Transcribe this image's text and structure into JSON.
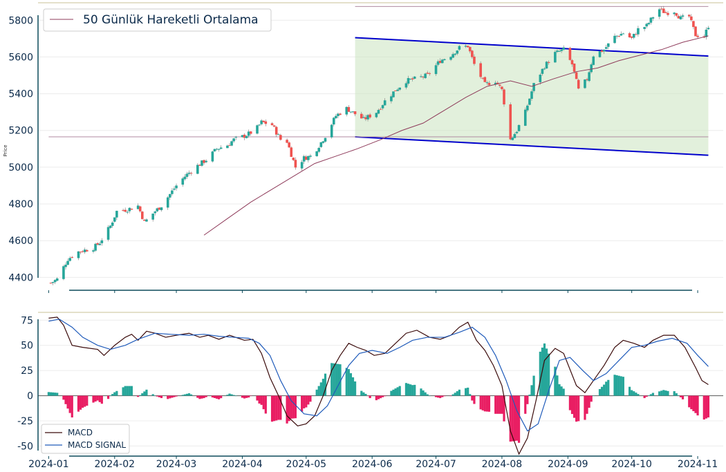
{
  "chart_data": [
    {
      "type": "candlestick",
      "ylabel": "Price",
      "ylim": [
        4330,
        5880
      ],
      "yticks": [
        4400,
        4600,
        4800,
        5000,
        5200,
        5400,
        5600,
        5800
      ],
      "legend": {
        "label": "50 Günlük Hareketli Ortalama",
        "placement": "top-left"
      },
      "colors": {
        "up": "#26a69a",
        "down": "#ef5350",
        "sma": "#8e3a5a",
        "channel": "#0000cc",
        "channel_fill": "#cfe6c4",
        "level": "#b08aa0"
      },
      "price_path": [
        [
          "2024-01-02",
          4370
        ],
        [
          "2024-01-05",
          4390
        ],
        [
          "2024-01-10",
          4500
        ],
        [
          "2024-01-15",
          4540
        ],
        [
          "2024-01-22",
          4560
        ],
        [
          "2024-01-25",
          4590
        ],
        [
          "2024-01-30",
          4680
        ],
        [
          "2024-02-02",
          4760
        ],
        [
          "2024-02-07",
          4770
        ],
        [
          "2024-02-12",
          4790
        ],
        [
          "2024-02-15",
          4700
        ],
        [
          "2024-02-20",
          4760
        ],
        [
          "2024-02-23",
          4790
        ],
        [
          "2024-03-01",
          4900
        ],
        [
          "2024-03-05",
          4950
        ],
        [
          "2024-03-10",
          5000
        ],
        [
          "2024-03-15",
          5040
        ],
        [
          "2024-03-20",
          5100
        ],
        [
          "2024-03-25",
          5120
        ],
        [
          "2024-03-28",
          5150
        ],
        [
          "2024-04-02",
          5170
        ],
        [
          "2024-04-07",
          5200
        ],
        [
          "2024-04-10",
          5245
        ],
        [
          "2024-04-15",
          5230
        ],
        [
          "2024-04-19",
          5150
        ],
        [
          "2024-04-22",
          5140
        ],
        [
          "2024-04-26",
          5000
        ],
        [
          "2024-04-30",
          5050
        ],
        [
          "2024-05-03",
          5060
        ],
        [
          "2024-05-06",
          5100
        ],
        [
          "2024-05-10",
          5170
        ],
        [
          "2024-05-15",
          5280
        ],
        [
          "2024-05-20",
          5320
        ],
        [
          "2024-05-24",
          5290
        ],
        [
          "2024-05-28",
          5260
        ],
        [
          "2024-06-03",
          5300
        ],
        [
          "2024-06-07",
          5360
        ],
        [
          "2024-06-12",
          5420
        ],
        [
          "2024-06-17",
          5470
        ],
        [
          "2024-06-21",
          5480
        ],
        [
          "2024-06-27",
          5500
        ],
        [
          "2024-07-03",
          5580
        ],
        [
          "2024-07-08",
          5610
        ],
        [
          "2024-07-12",
          5650
        ],
        [
          "2024-07-16",
          5660
        ],
        [
          "2024-07-19",
          5560
        ],
        [
          "2024-07-24",
          5450
        ],
        [
          "2024-07-29",
          5470
        ],
        [
          "2024-08-01",
          5420
        ],
        [
          "2024-08-05",
          5150
        ],
        [
          "2024-08-08",
          5200
        ],
        [
          "2024-08-12",
          5300
        ],
        [
          "2024-08-16",
          5450
        ],
        [
          "2024-08-21",
          5550
        ],
        [
          "2024-08-26",
          5620
        ],
        [
          "2024-08-30",
          5640
        ],
        [
          "2024-09-03",
          5560
        ],
        [
          "2024-09-06",
          5420
        ],
        [
          "2024-09-10",
          5480
        ],
        [
          "2024-09-13",
          5610
        ],
        [
          "2024-09-18",
          5640
        ],
        [
          "2024-09-23",
          5710
        ],
        [
          "2024-09-27",
          5730
        ],
        [
          "2024-10-01",
          5700
        ],
        [
          "2024-10-04",
          5750
        ],
        [
          "2024-10-08",
          5770
        ],
        [
          "2024-10-11",
          5820
        ],
        [
          "2024-10-14",
          5860
        ],
        [
          "2024-10-17",
          5840
        ],
        [
          "2024-10-21",
          5850
        ],
        [
          "2024-10-24",
          5810
        ],
        [
          "2024-10-28",
          5820
        ],
        [
          "2024-10-31",
          5720
        ],
        [
          "2024-11-04",
          5710
        ],
        [
          "2024-11-06",
          5770
        ]
      ],
      "sma50": [
        [
          "2024-03-14",
          4630
        ],
        [
          "2024-03-25",
          4720
        ],
        [
          "2024-04-05",
          4810
        ],
        [
          "2024-04-15",
          4880
        ],
        [
          "2024-04-25",
          4950
        ],
        [
          "2024-05-05",
          5020
        ],
        [
          "2024-05-15",
          5060
        ],
        [
          "2024-05-25",
          5100
        ],
        [
          "2024-06-05",
          5150
        ],
        [
          "2024-06-15",
          5200
        ],
        [
          "2024-06-25",
          5240
        ],
        [
          "2024-07-05",
          5310
        ],
        [
          "2024-07-15",
          5380
        ],
        [
          "2024-07-25",
          5440
        ],
        [
          "2024-08-05",
          5470
        ],
        [
          "2024-08-15",
          5440
        ],
        [
          "2024-08-25",
          5480
        ],
        [
          "2024-09-05",
          5520
        ],
        [
          "2024-09-15",
          5540
        ],
        [
          "2024-09-25",
          5580
        ],
        [
          "2024-10-05",
          5610
        ],
        [
          "2024-10-15",
          5640
        ],
        [
          "2024-10-25",
          5680
        ],
        [
          "2024-11-06",
          5715
        ]
      ],
      "channel": {
        "x0": "2024-05-24",
        "x1": "2024-11-06",
        "upper": [
          5705,
          5605
        ],
        "lower": [
          5165,
          5065
        ]
      },
      "levels": [
        {
          "value": 5165,
          "from": "2024-01-01",
          "to": "2024-11-06"
        },
        {
          "value": 5875,
          "from": "2024-05-24",
          "to": "2024-11-06"
        }
      ]
    },
    {
      "type": "bar+line",
      "ylim": [
        -60,
        80
      ],
      "yticks": [
        -50,
        -25,
        0,
        25,
        50,
        75
      ],
      "legend_placement": "bottom-left",
      "colors": {
        "pos": "#26a69a",
        "neg": "#e91e63",
        "macd": "#3a0a0a",
        "signal": "#1e5aba"
      },
      "series": [
        {
          "name": "MACD",
          "points": [
            [
              "2024-01-01",
              77
            ],
            [
              "2024-01-05",
              78
            ],
            [
              "2024-01-08",
              70
            ],
            [
              "2024-01-10",
              60
            ],
            [
              "2024-01-12",
              50
            ],
            [
              "2024-01-17",
              48
            ],
            [
              "2024-01-24",
              46
            ],
            [
              "2024-01-27",
              40
            ],
            [
              "2024-02-01",
              50
            ],
            [
              "2024-02-06",
              58
            ],
            [
              "2024-02-09",
              61
            ],
            [
              "2024-02-12",
              55
            ],
            [
              "2024-02-16",
              64
            ],
            [
              "2024-02-20",
              62
            ],
            [
              "2024-02-25",
              58
            ],
            [
              "2024-03-01",
              60
            ],
            [
              "2024-03-07",
              62
            ],
            [
              "2024-03-12",
              58
            ],
            [
              "2024-03-16",
              60
            ],
            [
              "2024-03-21",
              56
            ],
            [
              "2024-03-26",
              60
            ],
            [
              "2024-04-02",
              55
            ],
            [
              "2024-04-06",
              56
            ],
            [
              "2024-04-10",
              42
            ],
            [
              "2024-04-14",
              18
            ],
            [
              "2024-04-18",
              0
            ],
            [
              "2024-04-22",
              -20
            ],
            [
              "2024-04-27",
              -30
            ],
            [
              "2024-05-01",
              -28
            ],
            [
              "2024-05-05",
              -20
            ],
            [
              "2024-05-09",
              0
            ],
            [
              "2024-05-13",
              25
            ],
            [
              "2024-05-17",
              40
            ],
            [
              "2024-05-21",
              52
            ],
            [
              "2024-05-25",
              48
            ],
            [
              "2024-05-29",
              45
            ],
            [
              "2024-06-02",
              40
            ],
            [
              "2024-06-07",
              42
            ],
            [
              "2024-06-12",
              52
            ],
            [
              "2024-06-17",
              62
            ],
            [
              "2024-06-22",
              65
            ],
            [
              "2024-06-28",
              58
            ],
            [
              "2024-07-03",
              56
            ],
            [
              "2024-07-08",
              60
            ],
            [
              "2024-07-12",
              68
            ],
            [
              "2024-07-16",
              73
            ],
            [
              "2024-07-20",
              55
            ],
            [
              "2024-07-24",
              45
            ],
            [
              "2024-07-28",
              30
            ],
            [
              "2024-08-01",
              10
            ],
            [
              "2024-08-05",
              -35
            ],
            [
              "2024-08-09",
              -58
            ],
            [
              "2024-08-13",
              -42
            ],
            [
              "2024-08-17",
              -5
            ],
            [
              "2024-08-21",
              35
            ],
            [
              "2024-08-26",
              47
            ],
            [
              "2024-08-30",
              42
            ],
            [
              "2024-09-05",
              10
            ],
            [
              "2024-09-09",
              3
            ],
            [
              "2024-09-13",
              15
            ],
            [
              "2024-09-18",
              30
            ],
            [
              "2024-09-23",
              48
            ],
            [
              "2024-09-27",
              55
            ],
            [
              "2024-10-02",
              52
            ],
            [
              "2024-10-07",
              48
            ],
            [
              "2024-10-11",
              55
            ],
            [
              "2024-10-16",
              60
            ],
            [
              "2024-10-21",
              60
            ],
            [
              "2024-10-26",
              48
            ],
            [
              "2024-10-31",
              28
            ],
            [
              "2024-11-03",
              15
            ],
            [
              "2024-11-06",
              11
            ]
          ]
        },
        {
          "name": "MACD SIGNAL",
          "points": [
            [
              "2024-01-01",
              74
            ],
            [
              "2024-01-06",
              76
            ],
            [
              "2024-01-12",
              68
            ],
            [
              "2024-01-17",
              58
            ],
            [
              "2024-01-24",
              50
            ],
            [
              "2024-01-30",
              46
            ],
            [
              "2024-02-06",
              50
            ],
            [
              "2024-02-12",
              56
            ],
            [
              "2024-02-20",
              62
            ],
            [
              "2024-02-27",
              61
            ],
            [
              "2024-03-07",
              60
            ],
            [
              "2024-03-14",
              61
            ],
            [
              "2024-03-21",
              59
            ],
            [
              "2024-03-28",
              58
            ],
            [
              "2024-04-04",
              57
            ],
            [
              "2024-04-09",
              52
            ],
            [
              "2024-04-14",
              40
            ],
            [
              "2024-04-19",
              15
            ],
            [
              "2024-04-24",
              -5
            ],
            [
              "2024-04-30",
              -18
            ],
            [
              "2024-05-06",
              -20
            ],
            [
              "2024-05-11",
              -10
            ],
            [
              "2024-05-16",
              10
            ],
            [
              "2024-05-21",
              30
            ],
            [
              "2024-05-26",
              42
            ],
            [
              "2024-06-01",
              45
            ],
            [
              "2024-06-08",
              42
            ],
            [
              "2024-06-14",
              48
            ],
            [
              "2024-06-20",
              55
            ],
            [
              "2024-06-27",
              58
            ],
            [
              "2024-07-05",
              58
            ],
            [
              "2024-07-12",
              63
            ],
            [
              "2024-07-18",
              68
            ],
            [
              "2024-07-24",
              58
            ],
            [
              "2024-07-29",
              40
            ],
            [
              "2024-08-03",
              15
            ],
            [
              "2024-08-08",
              -15
            ],
            [
              "2024-08-13",
              -35
            ],
            [
              "2024-08-18",
              -28
            ],
            [
              "2024-08-23",
              5
            ],
            [
              "2024-08-28",
              35
            ],
            [
              "2024-09-02",
              38
            ],
            [
              "2024-09-08",
              25
            ],
            [
              "2024-09-13",
              15
            ],
            [
              "2024-09-19",
              22
            ],
            [
              "2024-09-25",
              35
            ],
            [
              "2024-10-01",
              48
            ],
            [
              "2024-10-07",
              50
            ],
            [
              "2024-10-13",
              54
            ],
            [
              "2024-10-20",
              57
            ],
            [
              "2024-10-27",
              52
            ],
            [
              "2024-11-01",
              40
            ],
            [
              "2024-11-06",
              29
            ]
          ]
        }
      ]
    }
  ],
  "x_axis": {
    "min": "2023-12-27",
    "max": "2024-11-13",
    "ticks": [
      "2024-01",
      "2024-02",
      "2024-03",
      "2024-04",
      "2024-05",
      "2024-06",
      "2024-07",
      "2024-08",
      "2024-09",
      "2024-10",
      "2024-11"
    ]
  }
}
